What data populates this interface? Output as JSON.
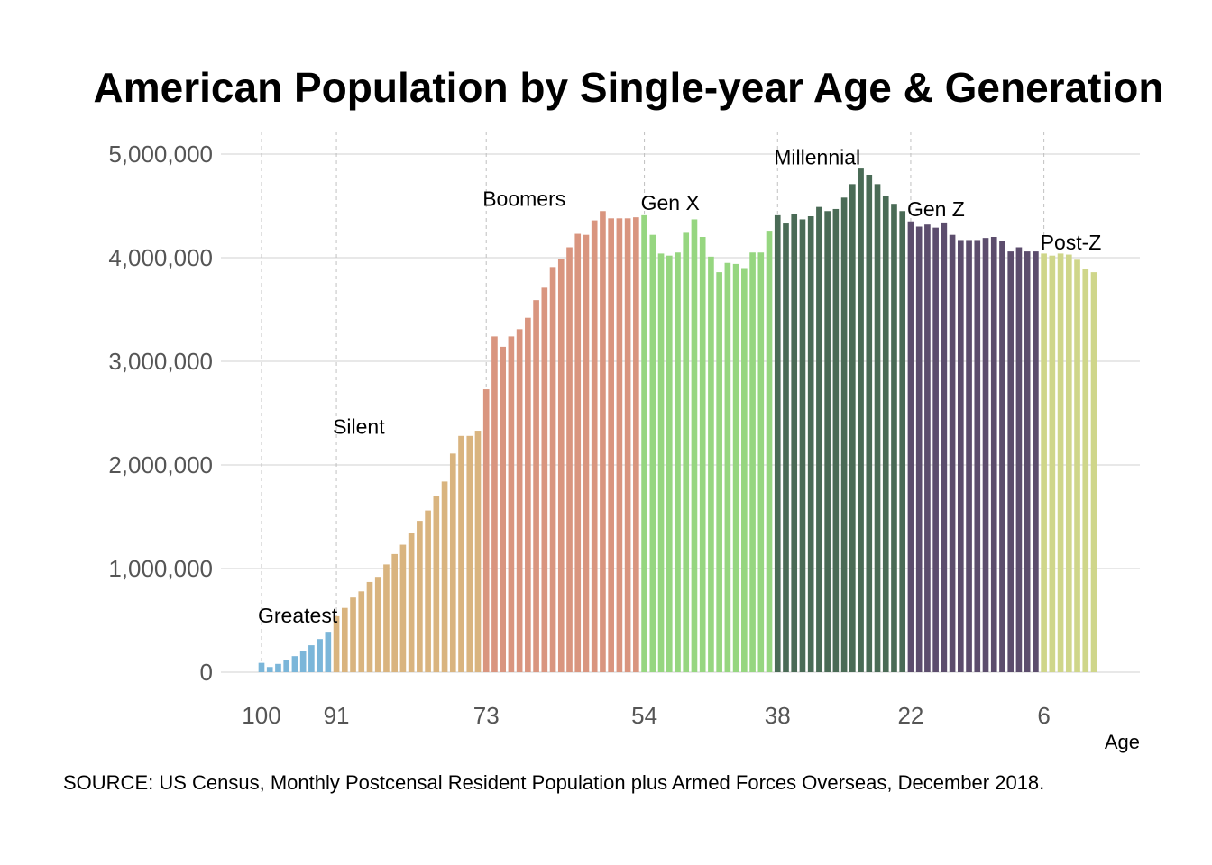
{
  "chart_data": {
    "type": "bar",
    "title": "American Population by Single-year Age & Generation",
    "xlabel": "Age",
    "ylabel": "",
    "source": "SOURCE: US Census, Monthly Postcensal Resident Population plus Armed Forces Overseas, December 2018.",
    "ylim": [
      0,
      5200000
    ],
    "x_range": [
      100,
      0
    ],
    "y_ticks": [
      0,
      1000000,
      2000000,
      3000000,
      4000000,
      5000000
    ],
    "y_tick_labels": [
      "0",
      "1,000,000",
      "2,000,000",
      "3,000,000",
      "4,000,000",
      "5,000,000"
    ],
    "x_ticks": [
      100,
      91,
      73,
      54,
      38,
      22,
      6
    ],
    "x_tick_labels": [
      "100",
      "91",
      "73",
      "54",
      "38",
      "22",
      "6"
    ],
    "grid": true,
    "generation_boundaries": [
      100,
      91,
      73,
      54,
      38,
      22,
      6
    ],
    "series": [
      {
        "name": "Greatest",
        "color": "#7bb6d9",
        "label_age": 100,
        "label_value": 480000,
        "ages": [
          100,
          99,
          98,
          97,
          96,
          95,
          94,
          93,
          92
        ],
        "values": [
          90000,
          50000,
          80000,
          120000,
          155000,
          200000,
          260000,
          320000,
          390000
        ]
      },
      {
        "name": "Silent",
        "color": "#d9b47f",
        "label_age": 91,
        "label_value": 2300000,
        "ages": [
          91,
          90,
          89,
          88,
          87,
          86,
          85,
          84,
          83,
          82,
          81,
          80,
          79,
          78,
          77,
          76,
          75,
          74
        ],
        "values": [
          540000,
          620000,
          720000,
          780000,
          870000,
          920000,
          1040000,
          1140000,
          1230000,
          1340000,
          1460000,
          1560000,
          1700000,
          1840000,
          2110000,
          2280000,
          2280000,
          2330000
        ]
      },
      {
        "name": "Boomers",
        "color": "#d9957f",
        "label_age": 73,
        "label_value": 4500000,
        "ages": [
          73,
          72,
          71,
          70,
          69,
          68,
          67,
          66,
          65,
          64,
          63,
          62,
          61,
          60,
          59,
          58,
          57,
          56,
          55
        ],
        "values": [
          2730000,
          3240000,
          3140000,
          3240000,
          3310000,
          3420000,
          3590000,
          3710000,
          3910000,
          3990000,
          4100000,
          4230000,
          4220000,
          4360000,
          4450000,
          4380000,
          4380000,
          4380000,
          4390000
        ]
      },
      {
        "name": "Gen X",
        "color": "#96d680",
        "label_age": 54,
        "label_value": 4460000,
        "ages": [
          54,
          53,
          52,
          51,
          50,
          49,
          48,
          47,
          46,
          45,
          44,
          43,
          42,
          41,
          40,
          39
        ],
        "values": [
          4410000,
          4220000,
          4040000,
          4020000,
          4050000,
          4240000,
          4370000,
          4200000,
          4010000,
          3860000,
          3950000,
          3940000,
          3900000,
          4050000,
          4050000,
          4260000
        ]
      },
      {
        "name": "Millennial",
        "color": "#4a6b56",
        "label_age": 38,
        "label_value": 4900000,
        "ages": [
          38,
          37,
          36,
          35,
          34,
          33,
          32,
          31,
          30,
          29,
          28,
          27,
          26,
          25,
          24,
          23
        ],
        "values": [
          4410000,
          4330000,
          4420000,
          4370000,
          4400000,
          4490000,
          4450000,
          4470000,
          4580000,
          4710000,
          4860000,
          4800000,
          4710000,
          4600000,
          4520000,
          4450000
        ]
      },
      {
        "name": "Gen Z",
        "color": "#5c4d6d",
        "label_age": 22,
        "label_value": 4400000,
        "ages": [
          22,
          21,
          20,
          19,
          18,
          17,
          16,
          15,
          14,
          13,
          12,
          11,
          10,
          9,
          8,
          7
        ],
        "values": [
          4350000,
          4300000,
          4320000,
          4290000,
          4340000,
          4220000,
          4170000,
          4170000,
          4170000,
          4190000,
          4200000,
          4160000,
          4060000,
          4100000,
          4060000,
          4060000
        ]
      },
      {
        "name": "Post-Z",
        "color": "#cfd68a",
        "label_age": 6,
        "label_value": 4080000,
        "ages": [
          6,
          5,
          4,
          3,
          2,
          1,
          0
        ],
        "values": [
          4040000,
          4020000,
          4040000,
          4030000,
          3980000,
          3890000,
          3860000
        ]
      }
    ]
  }
}
